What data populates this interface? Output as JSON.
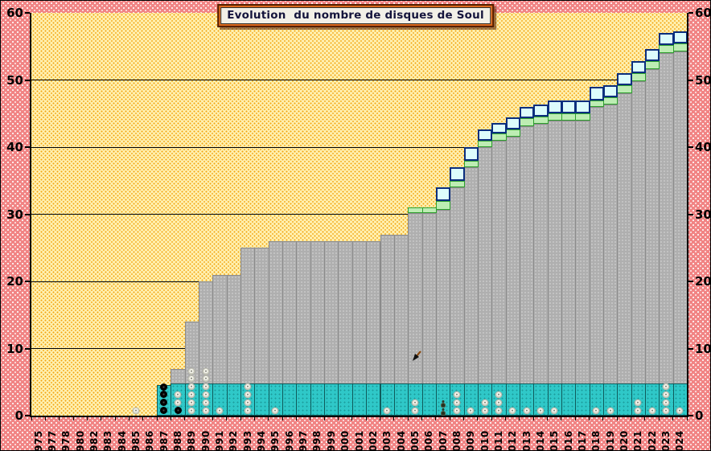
{
  "title": "Evolution  du nombre de disques de Soul",
  "colors": {
    "background_pink": "#F18484",
    "plot_yellow": "#FFF0B0",
    "plot_dot_orange": "#F2A007",
    "bar_gray": "#AFAFAF",
    "band_teal": "#2FC8C8",
    "segment_green": "#BDEDB3",
    "segment_green_border": "#2E9F2E",
    "segment_cyan": "#DCFCFC",
    "segment_cyan_border": "#0A2E7E",
    "title_frame_orange": "#DD6A1E",
    "axis_black": "#000000"
  },
  "chart_data": {
    "type": "bar",
    "stacked": true,
    "title": "Evolution  du nombre de disques de Soul",
    "xlabel": "",
    "ylabel": "",
    "ylim": [
      0,
      60
    ],
    "yticks": [
      0,
      10,
      20,
      30,
      40,
      50,
      60
    ],
    "yticks_right": [
      0,
      10,
      20,
      30,
      40,
      50,
      60
    ],
    "grid": "horizontal",
    "legend": "none",
    "note_markers": "white/black rings = disques ajoutés dans l'année ; bande turquoise = socle 0-4.8",
    "years": [
      {
        "year": "1975"
      },
      {
        "year": "1977"
      },
      {
        "year": "1978"
      },
      {
        "year": "1980"
      },
      {
        "year": "1982"
      },
      {
        "year": "1983"
      },
      {
        "year": "1984"
      },
      {
        "year": "1985",
        "dots": [
          "w"
        ]
      },
      {
        "year": "1986"
      },
      {
        "year": "1987",
        "teal": 4.5,
        "dots": [
          "b",
          "b",
          "b",
          "b"
        ]
      },
      {
        "year": "1988",
        "gray": 7,
        "teal": 4.8,
        "dots": [
          "b",
          "w",
          "w"
        ]
      },
      {
        "year": "1989",
        "gray": 14,
        "teal": 4.8,
        "dots": [
          "w",
          "w",
          "w",
          "w",
          "w",
          "w"
        ]
      },
      {
        "year": "1990",
        "gray": 20,
        "teal": 4.8,
        "dots": [
          "w",
          "w",
          "w",
          "w",
          "w",
          "w"
        ]
      },
      {
        "year": "1991",
        "gray": 21,
        "teal": 4.8,
        "dots": [
          "w"
        ]
      },
      {
        "year": "1992",
        "gray": 21,
        "teal": 4.8
      },
      {
        "year": "1993",
        "gray": 25,
        "teal": 4.8,
        "dots": [
          "w",
          "w",
          "w",
          "w"
        ]
      },
      {
        "year": "1994",
        "gray": 25,
        "teal": 4.8
      },
      {
        "year": "1995",
        "gray": 26,
        "teal": 4.8,
        "dots": [
          "w"
        ]
      },
      {
        "year": "1996",
        "gray": 26,
        "teal": 4.8
      },
      {
        "year": "1997",
        "gray": 26,
        "teal": 4.8
      },
      {
        "year": "1998",
        "gray": 26,
        "teal": 4.8
      },
      {
        "year": "1999",
        "gray": 26,
        "teal": 4.8
      },
      {
        "year": "2000",
        "gray": 26,
        "teal": 4.8
      },
      {
        "year": "2001",
        "gray": 26,
        "teal": 4.8
      },
      {
        "year": "2002",
        "gray": 26,
        "teal": 4.8
      },
      {
        "year": "2003",
        "gray": 27,
        "teal": 4.8,
        "dots": [
          "w"
        ]
      },
      {
        "year": "2004",
        "gray": 27,
        "teal": 4.8
      },
      {
        "year": "2005",
        "gray": 30.2,
        "green": 31,
        "teal": 4.8,
        "dots": [
          "w",
          "w"
        ],
        "cursor": true
      },
      {
        "year": "2006",
        "gray": 30.2,
        "green": 31,
        "teal": 4.8
      },
      {
        "year": "2007",
        "gray": 30.6,
        "green": 32,
        "cyan": 34,
        "teal": 4.8,
        "dots": [
          "f",
          "f"
        ]
      },
      {
        "year": "2008",
        "gray": 34,
        "green": 35,
        "cyan": 37,
        "teal": 4.8,
        "dots": [
          "w",
          "w",
          "w"
        ]
      },
      {
        "year": "2009",
        "gray": 37,
        "green": 38,
        "cyan": 40,
        "teal": 4.8,
        "dots": [
          "w"
        ]
      },
      {
        "year": "2010",
        "gray": 40,
        "green": 41,
        "cyan": 42.6,
        "teal": 4.8,
        "dots": [
          "w",
          "w"
        ]
      },
      {
        "year": "2011",
        "gray": 41,
        "green": 42,
        "cyan": 43.6,
        "teal": 4.8,
        "dots": [
          "w",
          "w",
          "w"
        ]
      },
      {
        "year": "2012",
        "gray": 41.5,
        "green": 42.6,
        "cyan": 44.4,
        "teal": 4.8,
        "dots": [
          "w"
        ]
      },
      {
        "year": "2013",
        "gray": 43.1,
        "green": 44.3,
        "cyan": 46,
        "teal": 4.8,
        "dots": [
          "w"
        ]
      },
      {
        "year": "2014",
        "gray": 43.5,
        "green": 44.6,
        "cyan": 46.4,
        "teal": 4.8,
        "dots": [
          "w"
        ]
      },
      {
        "year": "2015",
        "gray": 43.9,
        "green": 45,
        "cyan": 47,
        "teal": 4.8,
        "dots": [
          "w"
        ]
      },
      {
        "year": "2016",
        "gray": 43.9,
        "green": 45,
        "cyan": 47,
        "teal": 4.8
      },
      {
        "year": "2017",
        "gray": 43.9,
        "green": 45,
        "cyan": 47,
        "teal": 4.8
      },
      {
        "year": "2018",
        "gray": 46,
        "green": 47,
        "cyan": 49,
        "teal": 4.8,
        "dots": [
          "w"
        ]
      },
      {
        "year": "2019",
        "gray": 46.4,
        "green": 47.4,
        "cyan": 49.2,
        "teal": 4.8,
        "dots": [
          "w"
        ]
      },
      {
        "year": "2020",
        "gray": 48,
        "green": 49.2,
        "cyan": 51,
        "teal": 4.8
      },
      {
        "year": "2021",
        "gray": 49.8,
        "green": 51,
        "cyan": 52.8,
        "teal": 4.8,
        "dots": [
          "w",
          "w"
        ]
      },
      {
        "year": "2022",
        "gray": 51.6,
        "green": 52.8,
        "cyan": 54.6,
        "teal": 4.8,
        "dots": [
          "w"
        ]
      },
      {
        "year": "2023",
        "gray": 54,
        "green": 55.2,
        "cyan": 57,
        "teal": 4.8,
        "dots": [
          "w",
          "w",
          "w",
          "w"
        ]
      },
      {
        "year": "2024",
        "gray": 54.3,
        "green": 55.5,
        "cyan": 57.3,
        "teal": 4.8,
        "dots": [
          "w"
        ]
      }
    ]
  }
}
